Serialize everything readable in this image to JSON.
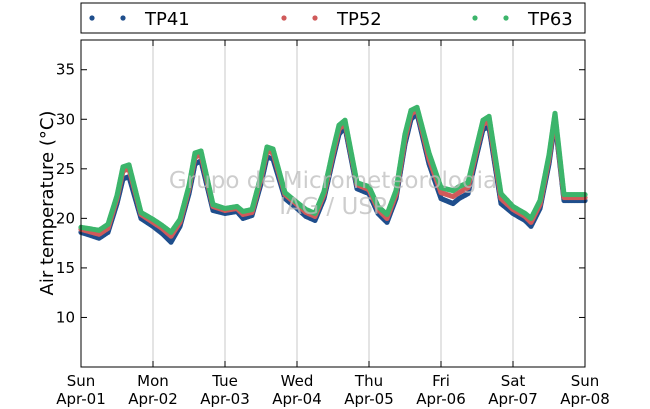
{
  "chart_data": {
    "type": "scatter",
    "title": "",
    "xlabel": "",
    "ylabel": "Air temperature (°C)",
    "ylim": [
      5,
      38
    ],
    "yticks": [
      10,
      15,
      20,
      25,
      30,
      35
    ],
    "xlim": [
      "2000-04-01",
      "2000-04-08"
    ],
    "xticks": [
      {
        "weekday": "Sun",
        "date": "Apr-01"
      },
      {
        "weekday": "Mon",
        "date": "Apr-02"
      },
      {
        "weekday": "Tue",
        "date": "Apr-03"
      },
      {
        "weekday": "Wed",
        "date": "Apr-04"
      },
      {
        "weekday": "Thu",
        "date": "Apr-05"
      },
      {
        "weekday": "Fri",
        "date": "Apr-06"
      },
      {
        "weekday": "Sat",
        "date": "Apr-07"
      },
      {
        "weekday": "Sun",
        "date": "Apr-08"
      }
    ],
    "grid": "vertical",
    "legend": {
      "placement": "top",
      "entries": [
        "TP41",
        "TP52",
        "TP63"
      ]
    },
    "watermark": [
      "Grupo de Micrometeorologia",
      "IAG / USP"
    ],
    "series": [
      {
        "name": "TP41",
        "color": "#1f4e8c",
        "x": [
          "2000-04-01 00:00",
          "2000-04-01 06:00",
          "2000-04-01 09:00",
          "2000-04-01 12:00",
          "2000-04-01 14:00",
          "2000-04-01 16:00",
          "2000-04-01 20:00",
          "2000-04-02 00:00",
          "2000-04-02 03:00",
          "2000-04-02 06:00",
          "2000-04-02 09:00",
          "2000-04-02 12:00",
          "2000-04-02 14:00",
          "2000-04-02 16:00",
          "2000-04-02 20:00",
          "2000-04-03 00:00",
          "2000-04-03 04:00",
          "2000-04-03 06:00",
          "2000-04-03 09:00",
          "2000-04-03 12:00",
          "2000-04-03 14:00",
          "2000-04-03 16:00",
          "2000-04-03 20:00",
          "2000-04-04 00:00",
          "2000-04-04 03:00",
          "2000-04-04 06:00",
          "2000-04-04 09:00",
          "2000-04-04 12:00",
          "2000-04-04 14:00",
          "2000-04-04 16:00",
          "2000-04-04 20:00",
          "2000-04-05 00:00",
          "2000-04-05 03:00",
          "2000-04-05 06:00",
          "2000-04-05 09:00",
          "2000-04-05 12:00",
          "2000-04-05 14:00",
          "2000-04-05 16:00",
          "2000-04-05 20:00",
          "2000-04-06 00:00",
          "2000-04-06 04:00",
          "2000-04-06 06:00",
          "2000-04-06 09:00",
          "2000-04-06 12:00",
          "2000-04-06 14:00",
          "2000-04-06 16:00",
          "2000-04-06 20:00",
          "2000-04-07 00:00",
          "2000-04-07 04:00",
          "2000-04-07 06:00",
          "2000-04-07 09:00",
          "2000-04-07 12:00",
          "2000-04-07 14:00",
          "2000-04-07 17:00",
          "2000-04-07 20:00",
          "2000-04-08 00:00"
        ],
        "y": [
          18.6,
          18.0,
          18.6,
          21.5,
          24.0,
          24.2,
          20.0,
          19.2,
          18.5,
          17.6,
          19.2,
          22.5,
          25.5,
          25.8,
          20.8,
          20.5,
          20.7,
          20.0,
          20.3,
          23.5,
          26.2,
          26.0,
          22.0,
          21.0,
          20.2,
          19.8,
          22.0,
          26.0,
          28.5,
          29.2,
          23.0,
          22.5,
          20.5,
          19.6,
          22.0,
          27.5,
          30.0,
          30.6,
          25.5,
          22.0,
          21.5,
          22.0,
          22.5,
          26.5,
          29.0,
          29.2,
          21.5,
          20.5,
          19.8,
          19.2,
          21.0,
          25.5,
          29.8,
          21.8,
          21.8,
          21.8
        ]
      },
      {
        "name": "TP52",
        "color": "#d05a5a",
        "x": [
          "2000-04-01 00:00",
          "2000-04-01 06:00",
          "2000-04-01 09:00",
          "2000-04-01 12:00",
          "2000-04-01 14:00",
          "2000-04-01 16:00",
          "2000-04-01 20:00",
          "2000-04-02 00:00",
          "2000-04-02 03:00",
          "2000-04-02 06:00",
          "2000-04-02 09:00",
          "2000-04-02 12:00",
          "2000-04-02 14:00",
          "2000-04-02 16:00",
          "2000-04-02 20:00",
          "2000-04-03 00:00",
          "2000-04-03 04:00",
          "2000-04-03 06:00",
          "2000-04-03 09:00",
          "2000-04-03 12:00",
          "2000-04-03 14:00",
          "2000-04-03 16:00",
          "2000-04-03 20:00",
          "2000-04-04 00:00",
          "2000-04-04 03:00",
          "2000-04-04 06:00",
          "2000-04-04 09:00",
          "2000-04-04 12:00",
          "2000-04-04 14:00",
          "2000-04-04 16:00",
          "2000-04-04 20:00",
          "2000-04-05 00:00",
          "2000-04-05 03:00",
          "2000-04-05 06:00",
          "2000-04-05 09:00",
          "2000-04-05 12:00",
          "2000-04-05 14:00",
          "2000-04-05 16:00",
          "2000-04-05 20:00",
          "2000-04-06 00:00",
          "2000-04-06 04:00",
          "2000-04-06 06:00",
          "2000-04-06 09:00",
          "2000-04-06 12:00",
          "2000-04-06 14:00",
          "2000-04-06 16:00",
          "2000-04-06 20:00",
          "2000-04-07 00:00",
          "2000-04-07 04:00",
          "2000-04-07 06:00",
          "2000-04-07 09:00",
          "2000-04-07 12:00",
          "2000-04-07 14:00",
          "2000-04-07 17:00",
          "2000-04-07 20:00",
          "2000-04-08 00:00"
        ],
        "y": [
          18.9,
          18.4,
          19.0,
          22.0,
          24.8,
          25.0,
          20.4,
          19.6,
          19.0,
          18.2,
          19.6,
          23.0,
          26.2,
          26.4,
          21.2,
          20.8,
          21.0,
          20.4,
          20.6,
          24.0,
          26.8,
          26.6,
          22.4,
          21.4,
          20.6,
          20.2,
          22.4,
          26.5,
          29.0,
          29.6,
          23.4,
          22.9,
          20.9,
          20.0,
          22.4,
          28.0,
          30.5,
          31.0,
          26.0,
          22.6,
          22.2,
          22.6,
          23.1,
          27.0,
          29.5,
          29.8,
          22.0,
          20.9,
          20.2,
          19.6,
          21.4,
          26.0,
          30.2,
          22.1,
          22.1,
          22.1
        ]
      },
      {
        "name": "TP63",
        "color": "#3cb56b",
        "x": [
          "2000-04-01 00:00",
          "2000-04-01 06:00",
          "2000-04-01 09:00",
          "2000-04-01 12:00",
          "2000-04-01 14:00",
          "2000-04-01 16:00",
          "2000-04-01 20:00",
          "2000-04-02 00:00",
          "2000-04-02 03:00",
          "2000-04-02 06:00",
          "2000-04-02 09:00",
          "2000-04-02 12:00",
          "2000-04-02 14:00",
          "2000-04-02 16:00",
          "2000-04-02 20:00",
          "2000-04-03 00:00",
          "2000-04-03 04:00",
          "2000-04-03 06:00",
          "2000-04-03 09:00",
          "2000-04-03 12:00",
          "2000-04-03 14:00",
          "2000-04-03 16:00",
          "2000-04-03 20:00",
          "2000-04-04 00:00",
          "2000-04-04 03:00",
          "2000-04-04 06:00",
          "2000-04-04 09:00",
          "2000-04-04 12:00",
          "2000-04-04 14:00",
          "2000-04-04 16:00",
          "2000-04-04 20:00",
          "2000-04-05 00:00",
          "2000-04-05 03:00",
          "2000-04-05 06:00",
          "2000-04-05 09:00",
          "2000-04-05 12:00",
          "2000-04-05 14:00",
          "2000-04-05 16:00",
          "2000-04-05 20:00",
          "2000-04-06 00:00",
          "2000-04-06 04:00",
          "2000-04-06 06:00",
          "2000-04-06 09:00",
          "2000-04-06 12:00",
          "2000-04-06 14:00",
          "2000-04-06 16:00",
          "2000-04-06 20:00",
          "2000-04-07 00:00",
          "2000-04-07 04:00",
          "2000-04-07 06:00",
          "2000-04-07 09:00",
          "2000-04-07 12:00",
          "2000-04-07 14:00",
          "2000-04-07 17:00",
          "2000-04-07 20:00",
          "2000-04-08 00:00"
        ],
        "y": [
          19.1,
          18.8,
          19.4,
          22.3,
          25.2,
          25.4,
          20.6,
          19.9,
          19.3,
          18.6,
          19.9,
          23.3,
          26.6,
          26.8,
          21.4,
          21.0,
          21.2,
          20.7,
          20.9,
          24.3,
          27.2,
          27.0,
          22.6,
          21.6,
          20.9,
          20.5,
          22.7,
          26.9,
          29.4,
          29.9,
          23.6,
          23.2,
          21.2,
          20.4,
          22.8,
          28.5,
          30.9,
          31.2,
          26.6,
          23.1,
          22.8,
          23.2,
          23.6,
          27.4,
          29.9,
          30.3,
          22.5,
          21.2,
          20.5,
          20.0,
          21.8,
          26.4,
          30.6,
          22.4,
          22.4,
          22.4
        ]
      }
    ]
  }
}
